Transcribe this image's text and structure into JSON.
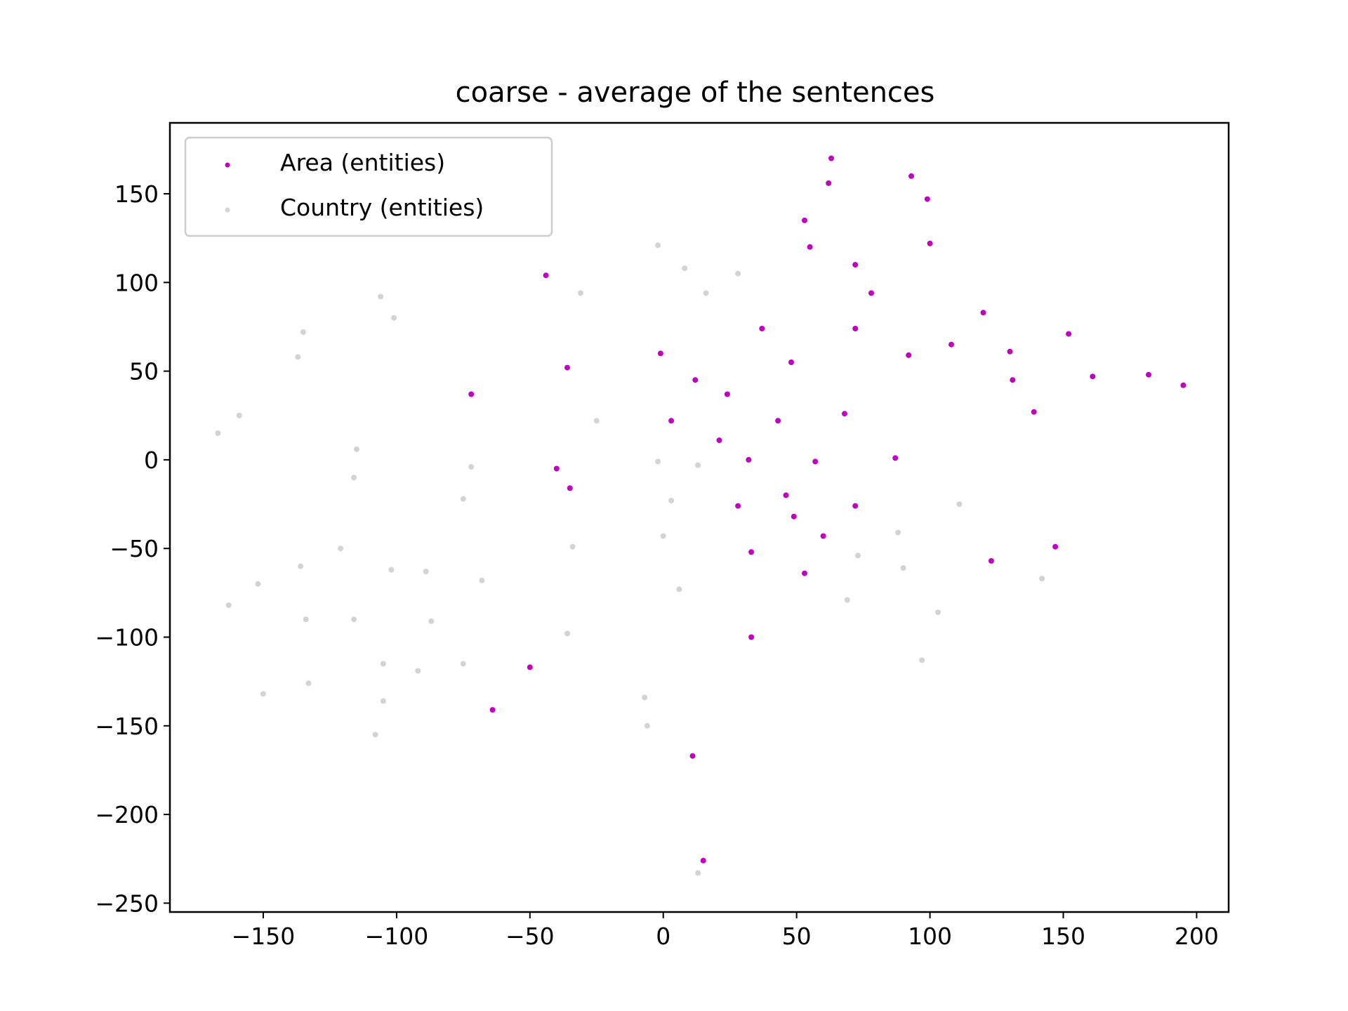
{
  "chart_data": {
    "type": "scatter",
    "title": "coarse - average of the sentences",
    "xlabel": "",
    "ylabel": "",
    "xlim": [
      -185,
      212
    ],
    "ylim": [
      -255,
      190
    ],
    "xticks": [
      -150,
      -100,
      -50,
      0,
      50,
      100,
      150,
      200
    ],
    "yticks": [
      -250,
      -200,
      -150,
      -100,
      -50,
      0,
      50,
      100,
      150
    ],
    "xtick_labels": [
      "−150",
      "−100",
      "−50",
      "0",
      "50",
      "100",
      "150",
      "200"
    ],
    "ytick_labels": [
      "−250",
      "−200",
      "−150",
      "−100",
      "−50",
      "0",
      "50",
      "100",
      "150"
    ],
    "grid": false,
    "legend_position": "top-left",
    "series": [
      {
        "name": "Country (entities)",
        "color": "#d3d3d3",
        "points": [
          [
            -2,
            121
          ],
          [
            8,
            108
          ],
          [
            28,
            105
          ],
          [
            -31,
            94
          ],
          [
            16,
            94
          ],
          [
            -106,
            92
          ],
          [
            -101,
            80
          ],
          [
            -135,
            72
          ],
          [
            -137,
            58
          ],
          [
            -159,
            25
          ],
          [
            -167,
            15
          ],
          [
            -115,
            6
          ],
          [
            -116,
            -10
          ],
          [
            -72,
            -4
          ],
          [
            -75,
            -22
          ],
          [
            -25,
            22
          ],
          [
            -2,
            -1
          ],
          [
            13,
            -3
          ],
          [
            3,
            -23
          ],
          [
            0,
            -43
          ],
          [
            -121,
            -50
          ],
          [
            -136,
            -60
          ],
          [
            -102,
            -62
          ],
          [
            -89,
            -63
          ],
          [
            -152,
            -70
          ],
          [
            -68,
            -68
          ],
          [
            -34,
            -49
          ],
          [
            -163,
            -82
          ],
          [
            -134,
            -90
          ],
          [
            -116,
            -90
          ],
          [
            -87,
            -91
          ],
          [
            -36,
            -98
          ],
          [
            6,
            -73
          ],
          [
            -105,
            -115
          ],
          [
            -75,
            -115
          ],
          [
            -92,
            -119
          ],
          [
            -150,
            -132
          ],
          [
            -133,
            -126
          ],
          [
            -105,
            -136
          ],
          [
            -108,
            -155
          ],
          [
            -7,
            -134
          ],
          [
            -6,
            -150
          ],
          [
            13,
            -233
          ],
          [
            88,
            -41
          ],
          [
            111,
            -25
          ],
          [
            73,
            -54
          ],
          [
            90,
            -61
          ],
          [
            69,
            -79
          ],
          [
            103,
            -86
          ],
          [
            142,
            -67
          ],
          [
            97,
            -113
          ]
        ]
      },
      {
        "name": "Area (entities)",
        "color": "#bf00bf",
        "points": [
          [
            63,
            170
          ],
          [
            62,
            156
          ],
          [
            93,
            160
          ],
          [
            99,
            147
          ],
          [
            53,
            135
          ],
          [
            55,
            120
          ],
          [
            100,
            122
          ],
          [
            72,
            110
          ],
          [
            78,
            94
          ],
          [
            -44,
            104
          ],
          [
            37,
            74
          ],
          [
            72,
            74
          ],
          [
            120,
            83
          ],
          [
            152,
            71
          ],
          [
            -1,
            60
          ],
          [
            92,
            59
          ],
          [
            108,
            65
          ],
          [
            130,
            61
          ],
          [
            -36,
            52
          ],
          [
            12,
            45
          ],
          [
            48,
            55
          ],
          [
            131,
            45
          ],
          [
            161,
            47
          ],
          [
            182,
            48
          ],
          [
            195,
            42
          ],
          [
            -72,
            37
          ],
          [
            24,
            37
          ],
          [
            3,
            22
          ],
          [
            43,
            22
          ],
          [
            68,
            26
          ],
          [
            139,
            27
          ],
          [
            21,
            11
          ],
          [
            32,
            0
          ],
          [
            57,
            -1
          ],
          [
            87,
            1
          ],
          [
            -40,
            -5
          ],
          [
            -35,
            -16
          ],
          [
            46,
            -20
          ],
          [
            28,
            -26
          ],
          [
            72,
            -26
          ],
          [
            49,
            -32
          ],
          [
            60,
            -43
          ],
          [
            33,
            -52
          ],
          [
            53,
            -64
          ],
          [
            123,
            -57
          ],
          [
            147,
            -49
          ],
          [
            33,
            -100
          ],
          [
            -50,
            -117
          ],
          [
            -64,
            -141
          ],
          [
            11,
            -167
          ],
          [
            15,
            -226
          ]
        ]
      }
    ]
  }
}
